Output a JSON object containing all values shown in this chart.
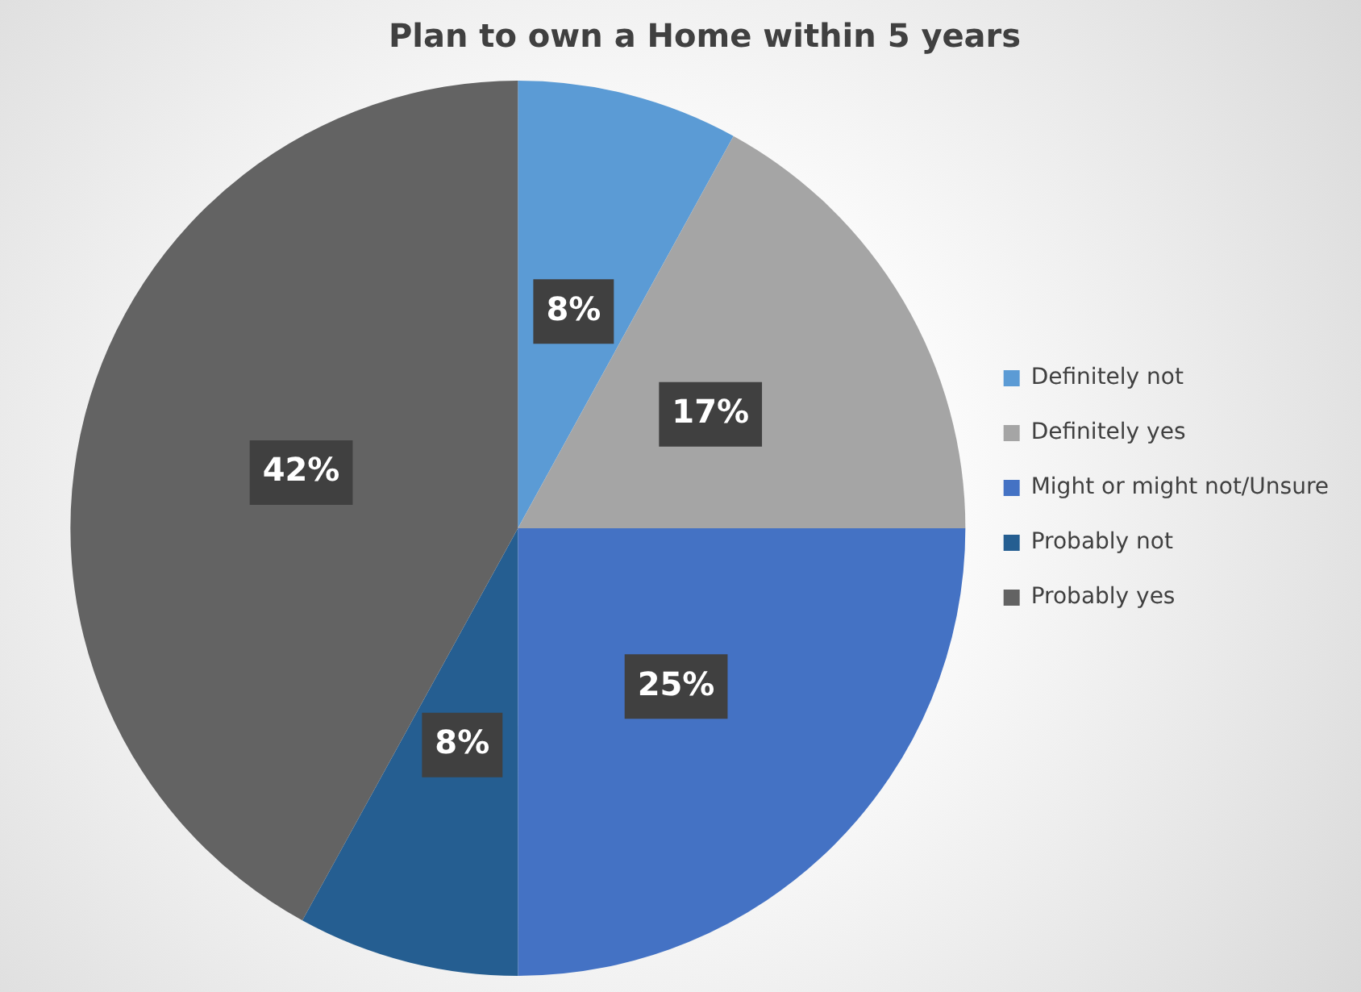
{
  "chart_data": {
    "type": "pie",
    "title": "Plan to own a Home within 5 years",
    "categories": [
      "Definitely not",
      "Definitely yes",
      "Might or might not/Unsure",
      "Probably not",
      "Probably yes"
    ],
    "values": [
      8,
      17,
      25,
      8,
      42
    ],
    "colors": [
      "#5b9bd5",
      "#a5a5a5",
      "#4472c4",
      "#255e91",
      "#636363"
    ],
    "value_labels": [
      "8%",
      "17%",
      "25%",
      "8%",
      "42%"
    ],
    "legend": "right"
  }
}
